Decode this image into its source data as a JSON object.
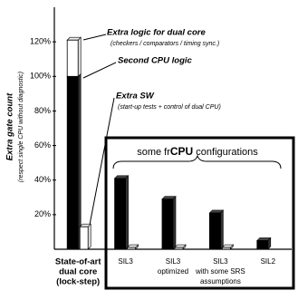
{
  "chart_data": {
    "type": "bar",
    "y_label": "Extra gate count",
    "y_sublabel": "(respect single CPU without diagnostic)",
    "categories": [
      [
        "State-of-art",
        "dual core",
        "(lock-step)"
      ],
      [
        "SIL3"
      ],
      [
        "SIL3",
        "optimized"
      ],
      [
        "SIL3",
        "with some SRS",
        "assumptions"
      ],
      [
        "SIL2"
      ]
    ],
    "series": [
      {
        "name": "Second CPU logic",
        "color": "#000000",
        "values": [
          100,
          41,
          29,
          21,
          5
        ]
      },
      {
        "name": "Extra logic for dual core",
        "note": "(checkers / comparators / timing sync.)",
        "color": "#ffffff",
        "stacked": true,
        "values": [
          21,
          null,
          null,
          null,
          null
        ]
      },
      {
        "name": "Extra SW",
        "note": "(start-up tests + control of dual CPU)",
        "color": "#ffffff",
        "values": [
          13,
          1,
          1,
          1,
          null
        ]
      }
    ],
    "box_title": [
      "some fr",
      "CPU",
      " configurations"
    ],
    "ylim": [
      0,
      140
    ],
    "yticks": [
      {
        "value": 20,
        "label": "20%"
      },
      {
        "value": 40,
        "label": "40%"
      },
      {
        "value": 60,
        "label": "60%"
      },
      {
        "value": 80,
        "label": "80%"
      },
      {
        "value": 100,
        "label": "100%"
      },
      {
        "value": 120,
        "label": "120%"
      }
    ],
    "grid": false
  }
}
